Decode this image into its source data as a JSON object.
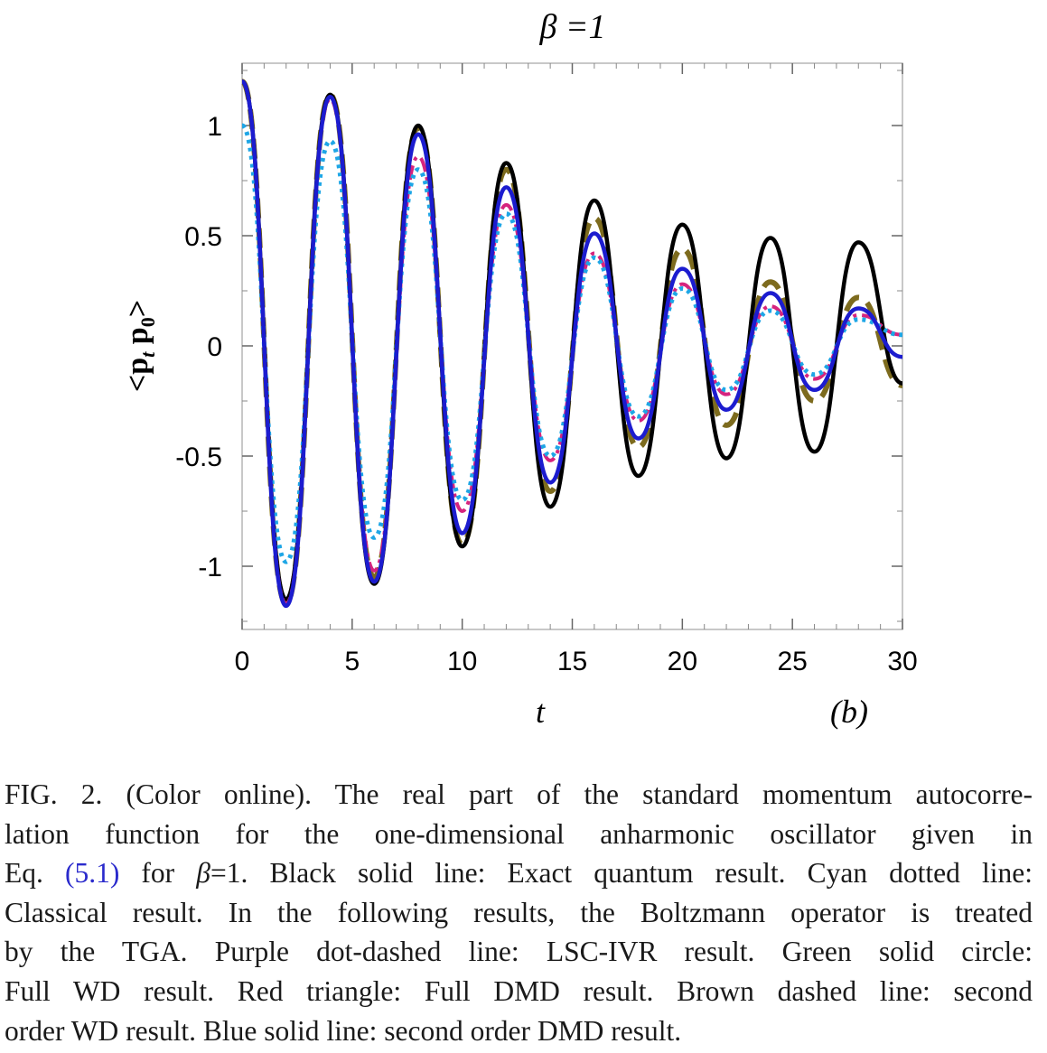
{
  "figure": {
    "title": "β =1",
    "panel_label": "(b)",
    "xlabel": "t",
    "ylabel_main": "<p",
    "ylabel_sub_t": "t",
    "ylabel_mid": " p",
    "ylabel_sub_0": "0",
    "ylabel_close": ">"
  },
  "chart_data": {
    "type": "line",
    "title": "β =1",
    "xlabel": "t",
    "ylabel": "<p_t p_0>",
    "xlim": [
      0,
      30
    ],
    "ylim": [
      -1.3,
      1.3
    ],
    "x_ticks": [
      "0",
      "5",
      "10",
      "15",
      "20",
      "25",
      "30"
    ],
    "y_ticks": [
      "1",
      "0.5",
      "0",
      "-0.5",
      "-1"
    ],
    "grid": false,
    "series": [
      {
        "style": "solid",
        "color": "#000000",
        "x": [
          0,
          2,
          4,
          6,
          8,
          10,
          12,
          14,
          16,
          18,
          20,
          22,
          24,
          26,
          28,
          30
        ],
        "y": [
          1.2,
          -1.15,
          1.14,
          -1.08,
          1.0,
          -0.91,
          0.83,
          -0.73,
          0.66,
          -0.59,
          0.55,
          -0.51,
          0.49,
          -0.48,
          0.47,
          -0.17
        ]
      },
      {
        "style": "dotted",
        "color": "#1ea6e6",
        "x": [
          0,
          2,
          4,
          6,
          8,
          10,
          12,
          14,
          16,
          18,
          20,
          22,
          24,
          26,
          28,
          30
        ],
        "y": [
          1.0,
          -0.98,
          0.93,
          -0.87,
          0.8,
          -0.7,
          0.6,
          -0.5,
          0.4,
          -0.32,
          0.26,
          -0.2,
          0.16,
          -0.13,
          0.12,
          0.05
        ]
      },
      {
        "style": "dot-dashed",
        "color": "#d6247e",
        "x": [
          0,
          2,
          4,
          6,
          8,
          10,
          12,
          14,
          16,
          18,
          20,
          22,
          24,
          26,
          28,
          30
        ],
        "y": [
          1.2,
          -1.17,
          1.12,
          -1.02,
          0.86,
          -0.75,
          0.64,
          -0.52,
          0.42,
          -0.34,
          0.28,
          -0.22,
          0.18,
          -0.15,
          0.14,
          0.05
        ]
      },
      {
        "style": "dashed",
        "color": "#7d6b1e",
        "x": [
          0,
          2,
          4,
          6,
          8,
          10,
          12,
          14,
          16,
          18,
          20,
          22,
          24,
          26,
          28,
          30
        ],
        "y": [
          1.2,
          -1.17,
          1.14,
          -1.05,
          0.99,
          -0.9,
          0.8,
          -0.66,
          0.58,
          -0.46,
          0.44,
          -0.36,
          0.29,
          -0.25,
          0.22,
          -0.18
        ]
      },
      {
        "style": "solid",
        "color": "#1c1ccf",
        "x": [
          0,
          2,
          4,
          6,
          8,
          10,
          12,
          14,
          16,
          18,
          20,
          22,
          24,
          26,
          28,
          30
        ],
        "y": [
          1.2,
          -1.18,
          1.13,
          -1.07,
          0.96,
          -0.85,
          0.72,
          -0.62,
          0.51,
          -0.42,
          0.35,
          -0.29,
          0.24,
          -0.2,
          0.17,
          -0.05
        ]
      }
    ]
  },
  "caption": {
    "lines": [
      [
        "FIG. 2. (Color online). The real part of the standard momentum autocorre-"
      ],
      [
        "lation function for the one-dimensional anharmonic oscillator given in"
      ],
      [
        "Eq. ",
        "(5.1)",
        " for ",
        "β",
        "=1. Black solid line: Exact quantum result. Cyan dotted line:"
      ],
      [
        "Classical result. In the following results, the Boltzmann operator is treated"
      ],
      [
        "by the TGA. Purple dot-dashed line: LSC-IVR result. Green solid circle:"
      ],
      [
        "Full WD result. Red triangle: Full DMD result. Brown dashed line: second"
      ],
      [
        "order WD result. Blue solid line: second order DMD result."
      ]
    ]
  }
}
